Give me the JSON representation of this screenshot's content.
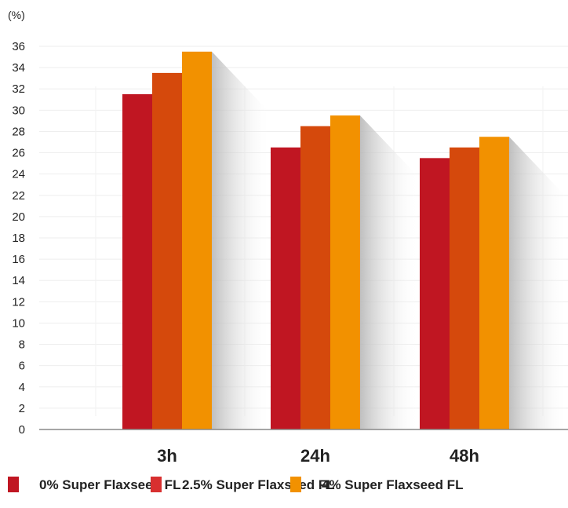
{
  "chart_data": {
    "type": "bar",
    "title": "",
    "ylabel": "(%)",
    "xlabel": "",
    "ylim": [
      0,
      36
    ],
    "yticks": [
      0,
      2,
      4,
      6,
      8,
      10,
      12,
      14,
      16,
      18,
      20,
      22,
      24,
      26,
      28,
      30,
      32,
      34,
      36
    ],
    "categories": [
      "3h",
      "24h",
      "48h"
    ],
    "series": [
      {
        "name": "0% Super Flaxseed FL",
        "color": "#c01622",
        "legend_color": "#c01622",
        "values": [
          31.5,
          26.5,
          25.5
        ]
      },
      {
        "name": "2.5% Super Flaxseed FL",
        "color": "#d5490c",
        "legend_color": "#d83030",
        "values": [
          33.5,
          28.5,
          26.5
        ]
      },
      {
        "name": "4% Super Flaxseed FL",
        "color": "#f29100",
        "legend_color": "#f29100",
        "values": [
          35.5,
          29.5,
          27.5
        ]
      }
    ],
    "grid": true,
    "legend_position": "bottom"
  }
}
